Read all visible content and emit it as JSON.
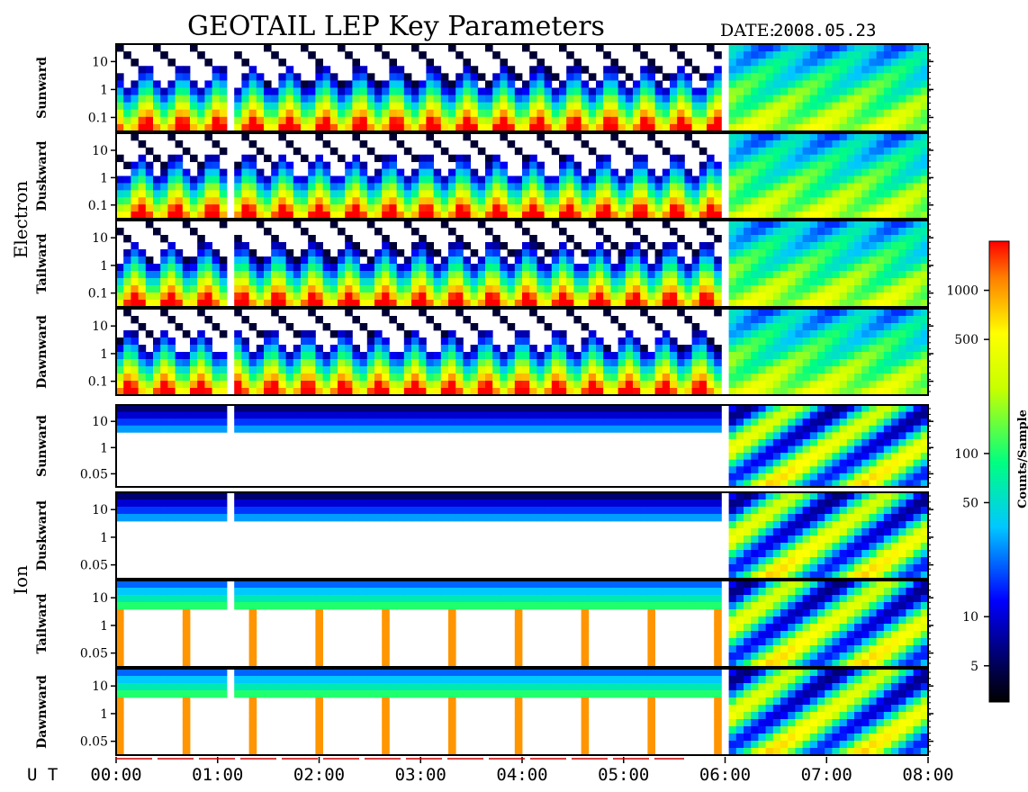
{
  "title": "GEOTAIL LEP Key Parameters",
  "date_label": "DATE:",
  "date_value": "2008.05.23",
  "chart_data": {
    "type": "heatmap",
    "time_axis_label": "U T",
    "time_ticks": [
      "00:00",
      "01:00",
      "02:00",
      "03:00",
      "04:00",
      "05:00",
      "06:00",
      "07:00",
      "08:00"
    ],
    "groups": [
      {
        "name": "Electron",
        "panels": [
          "Sunward",
          "Duskward",
          "Tailward",
          "Dawnward"
        ],
        "yticks": [
          "10",
          "1",
          "0.1"
        ]
      },
      {
        "name": "Ion",
        "panels": [
          "Sunward",
          "Duskward",
          "Tailward",
          "Dawnward"
        ],
        "yticks": [
          "10",
          "1",
          "0.05"
        ]
      }
    ],
    "colorbar": {
      "label": "Counts/Sample",
      "scale": "log",
      "range": [
        3,
        2000
      ],
      "ticks": [
        {
          "label": "1000",
          "value": 1000
        },
        {
          "label": "500",
          "value": 500
        },
        {
          "label": "100",
          "value": 100
        },
        {
          "label": "50",
          "value": 50
        },
        {
          "label": "10",
          "value": 10
        },
        {
          "label": "5",
          "value": 5
        }
      ]
    }
  }
}
